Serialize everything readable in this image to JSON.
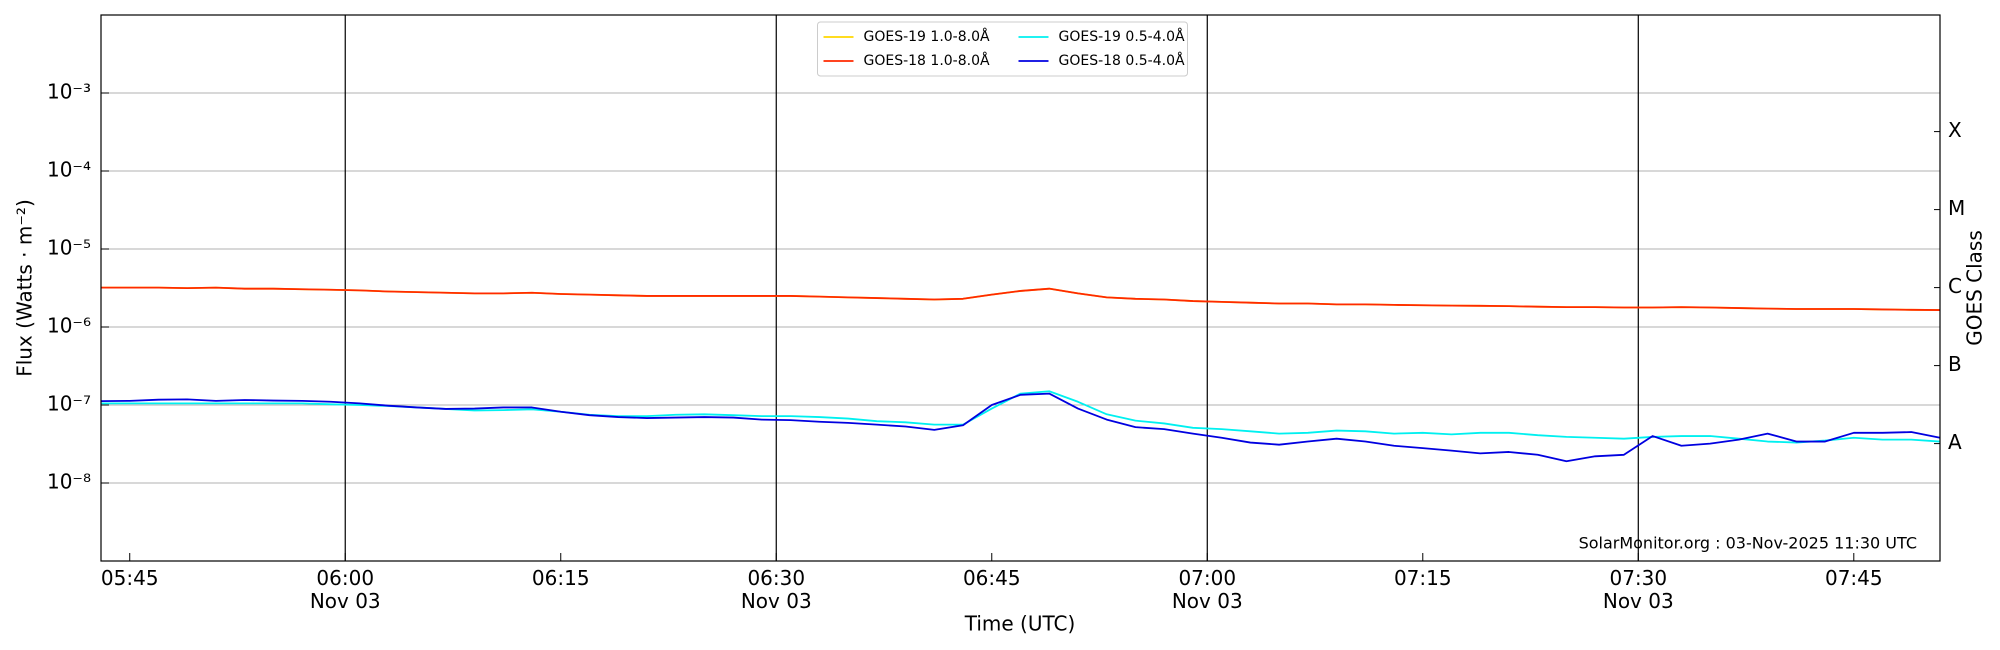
{
  "chart_data": {
    "type": "line",
    "ylabel": "Flux (Watts · m⁻²)",
    "xlabel": "Time (UTC)",
    "y2label": "GOES Class",
    "annotation": "SolarMonitor.org : 03-Nov-2025 11:30 UTC",
    "ylog": true,
    "grid": true,
    "legend": "upper center",
    "legend_columns": 2,
    "xlim": [
      "05:43",
      "07:51"
    ],
    "ylim": [
      1e-09,
      0.01
    ],
    "y2lim": [
      1e-09,
      0.01
    ],
    "xticks": [
      "05:45",
      {
        "value": "06:00",
        "label": "06:00\nNov 03"
      },
      "06:15",
      {
        "value": "06:30",
        "label": "06:30\nNov 03"
      },
      "06:45",
      {
        "value": "07:00",
        "label": "07:00\nNov 03"
      },
      "07:15",
      {
        "value": "07:30",
        "label": "07:30\nNov 03"
      },
      "07:45"
    ],
    "yticks": [
      {
        "value": 1e-08,
        "label": "10⁻⁸"
      },
      {
        "value": 1e-07,
        "label": "10⁻⁷"
      },
      {
        "value": 1e-06,
        "label": "10⁻⁶"
      },
      {
        "value": 1e-05,
        "label": "10⁻⁵"
      },
      {
        "value": 0.0001,
        "label": "10⁻⁴"
      },
      {
        "value": 0.001,
        "label": "10⁻³"
      }
    ],
    "y2ticks": [
      {
        "value": 3.2e-08,
        "label": "A"
      },
      {
        "value": 3.2e-07,
        "label": "B"
      },
      {
        "value": 3.2e-06,
        "label": "C"
      },
      {
        "value": 3.2e-05,
        "label": "M"
      },
      {
        "value": 0.00032,
        "label": "X"
      }
    ],
    "vlines": [
      "06:00",
      "06:30",
      "07:00",
      "07:30"
    ],
    "vline_color": "#000000",
    "x": [
      "05:43",
      "05:45",
      "05:47",
      "05:49",
      "05:51",
      "05:53",
      "05:55",
      "05:57",
      "05:59",
      "06:01",
      "06:03",
      "06:05",
      "06:07",
      "06:09",
      "06:11",
      "06:13",
      "06:15",
      "06:17",
      "06:19",
      "06:21",
      "06:23",
      "06:25",
      "06:27",
      "06:29",
      "06:31",
      "06:33",
      "06:35",
      "06:37",
      "06:39",
      "06:41",
      "06:43",
      "06:45",
      "06:47",
      "06:49",
      "06:51",
      "06:53",
      "06:55",
      "06:57",
      "06:59",
      "07:01",
      "07:03",
      "07:05",
      "07:07",
      "07:09",
      "07:11",
      "07:13",
      "07:15",
      "07:17",
      "07:19",
      "07:21",
      "07:23",
      "07:25",
      "07:27",
      "07:29",
      "07:31",
      "07:33",
      "07:35",
      "07:37",
      "07:39",
      "07:41",
      "07:43",
      "07:45",
      "07:47",
      "07:49",
      "07:51"
    ],
    "series": [
      {
        "name": "GOES-19 1.0-8.0Å",
        "color": "#ffd700",
        "values": [
          3.2e-06,
          3.2e-06,
          3.2e-06,
          3.15e-06,
          3.2e-06,
          3.1e-06,
          3.1e-06,
          3.05e-06,
          3e-06,
          2.95e-06,
          2.85e-06,
          2.8e-06,
          2.75e-06,
          2.7e-06,
          2.7e-06,
          2.75e-06,
          2.65e-06,
          2.6e-06,
          2.55e-06,
          2.5e-06,
          2.5e-06,
          2.5e-06,
          2.5e-06,
          2.5e-06,
          2.5e-06,
          2.45e-06,
          2.4e-06,
          2.35e-06,
          2.3e-06,
          2.25e-06,
          2.3e-06,
          2.6e-06,
          2.9e-06,
          3.1e-06,
          2.7e-06,
          2.4e-06,
          2.3e-06,
          2.25e-06,
          2.15e-06,
          2.1e-06,
          2.05e-06,
          2e-06,
          2e-06,
          1.95e-06,
          1.95e-06,
          1.92e-06,
          1.9e-06,
          1.88e-06,
          1.87e-06,
          1.85e-06,
          1.82e-06,
          1.8e-06,
          1.8e-06,
          1.78e-06,
          1.78e-06,
          1.8e-06,
          1.78e-06,
          1.75e-06,
          1.72e-06,
          1.7e-06,
          1.7e-06,
          1.7e-06,
          1.68e-06,
          1.66e-06,
          1.65e-06
        ]
      },
      {
        "name": "GOES-18 1.0-8.0Å",
        "color": "#ff2a00",
        "values": [
          3.2e-06,
          3.2e-06,
          3.2e-06,
          3.15e-06,
          3.2e-06,
          3.1e-06,
          3.1e-06,
          3.05e-06,
          3e-06,
          2.95e-06,
          2.85e-06,
          2.8e-06,
          2.75e-06,
          2.7e-06,
          2.7e-06,
          2.75e-06,
          2.65e-06,
          2.6e-06,
          2.55e-06,
          2.5e-06,
          2.5e-06,
          2.5e-06,
          2.5e-06,
          2.5e-06,
          2.5e-06,
          2.45e-06,
          2.4e-06,
          2.35e-06,
          2.3e-06,
          2.25e-06,
          2.3e-06,
          2.6e-06,
          2.9e-06,
          3.1e-06,
          2.7e-06,
          2.4e-06,
          2.3e-06,
          2.25e-06,
          2.15e-06,
          2.1e-06,
          2.05e-06,
          2e-06,
          2e-06,
          1.95e-06,
          1.95e-06,
          1.92e-06,
          1.9e-06,
          1.88e-06,
          1.87e-06,
          1.85e-06,
          1.82e-06,
          1.8e-06,
          1.8e-06,
          1.78e-06,
          1.78e-06,
          1.8e-06,
          1.78e-06,
          1.75e-06,
          1.72e-06,
          1.7e-06,
          1.7e-06,
          1.7e-06,
          1.68e-06,
          1.66e-06,
          1.65e-06
        ]
      },
      {
        "name": "GOES-19 0.5-4.0Å",
        "color": "#00f0f0",
        "values": [
          1.05e-07,
          1.05e-07,
          1.05e-07,
          1.05e-07,
          1.05e-07,
          1.05e-07,
          1.05e-07,
          1.05e-07,
          1.02e-07,
          1e-07,
          9.7e-08,
          9.3e-08,
          8.9e-08,
          8.5e-08,
          8.6e-08,
          8.8e-08,
          8.2e-08,
          7.5e-08,
          7.2e-08,
          7.2e-08,
          7.5e-08,
          7.6e-08,
          7.4e-08,
          7.2e-08,
          7.2e-08,
          7e-08,
          6.7e-08,
          6.2e-08,
          6e-08,
          5.6e-08,
          5.6e-08,
          9e-08,
          1.4e-07,
          1.5e-07,
          1.1e-07,
          7.6e-08,
          6.3e-08,
          5.8e-08,
          5.1e-08,
          4.9e-08,
          4.6e-08,
          4.3e-08,
          4.4e-08,
          4.7e-08,
          4.6e-08,
          4.3e-08,
          4.4e-08,
          4.2e-08,
          4.4e-08,
          4.4e-08,
          4.1e-08,
          3.9e-08,
          3.8e-08,
          3.7e-08,
          3.9e-08,
          4e-08,
          4e-08,
          3.7e-08,
          3.4e-08,
          3.3e-08,
          3.5e-08,
          3.8e-08,
          3.6e-08,
          3.6e-08,
          3.4e-08
        ]
      },
      {
        "name": "GOES-18 0.5-4.0Å",
        "color": "#0000e0",
        "values": [
          1.12e-07,
          1.13e-07,
          1.17e-07,
          1.18e-07,
          1.13e-07,
          1.16e-07,
          1.14e-07,
          1.13e-07,
          1.1e-07,
          1.05e-07,
          9.8e-08,
          9.3e-08,
          8.9e-08,
          9e-08,
          9.3e-08,
          9.3e-08,
          8.2e-08,
          7.4e-08,
          7e-08,
          6.8e-08,
          6.9e-08,
          7e-08,
          6.9e-08,
          6.5e-08,
          6.4e-08,
          6.1e-08,
          5.9e-08,
          5.6e-08,
          5.3e-08,
          4.8e-08,
          5.5e-08,
          1e-07,
          1.35e-07,
          1.4e-07,
          9e-08,
          6.5e-08,
          5.2e-08,
          4.9e-08,
          4.3e-08,
          3.8e-08,
          3.3e-08,
          3.1e-08,
          3.4e-08,
          3.7e-08,
          3.4e-08,
          3e-08,
          2.8e-08,
          2.6e-08,
          2.4e-08,
          2.5e-08,
          2.3e-08,
          1.9e-08,
          2.2e-08,
          2.3e-08,
          4e-08,
          3e-08,
          3.2e-08,
          3.6e-08,
          4.3e-08,
          3.4e-08,
          3.4e-08,
          4.4e-08,
          4.4e-08,
          4.5e-08,
          3.8e-08
        ]
      }
    ]
  }
}
